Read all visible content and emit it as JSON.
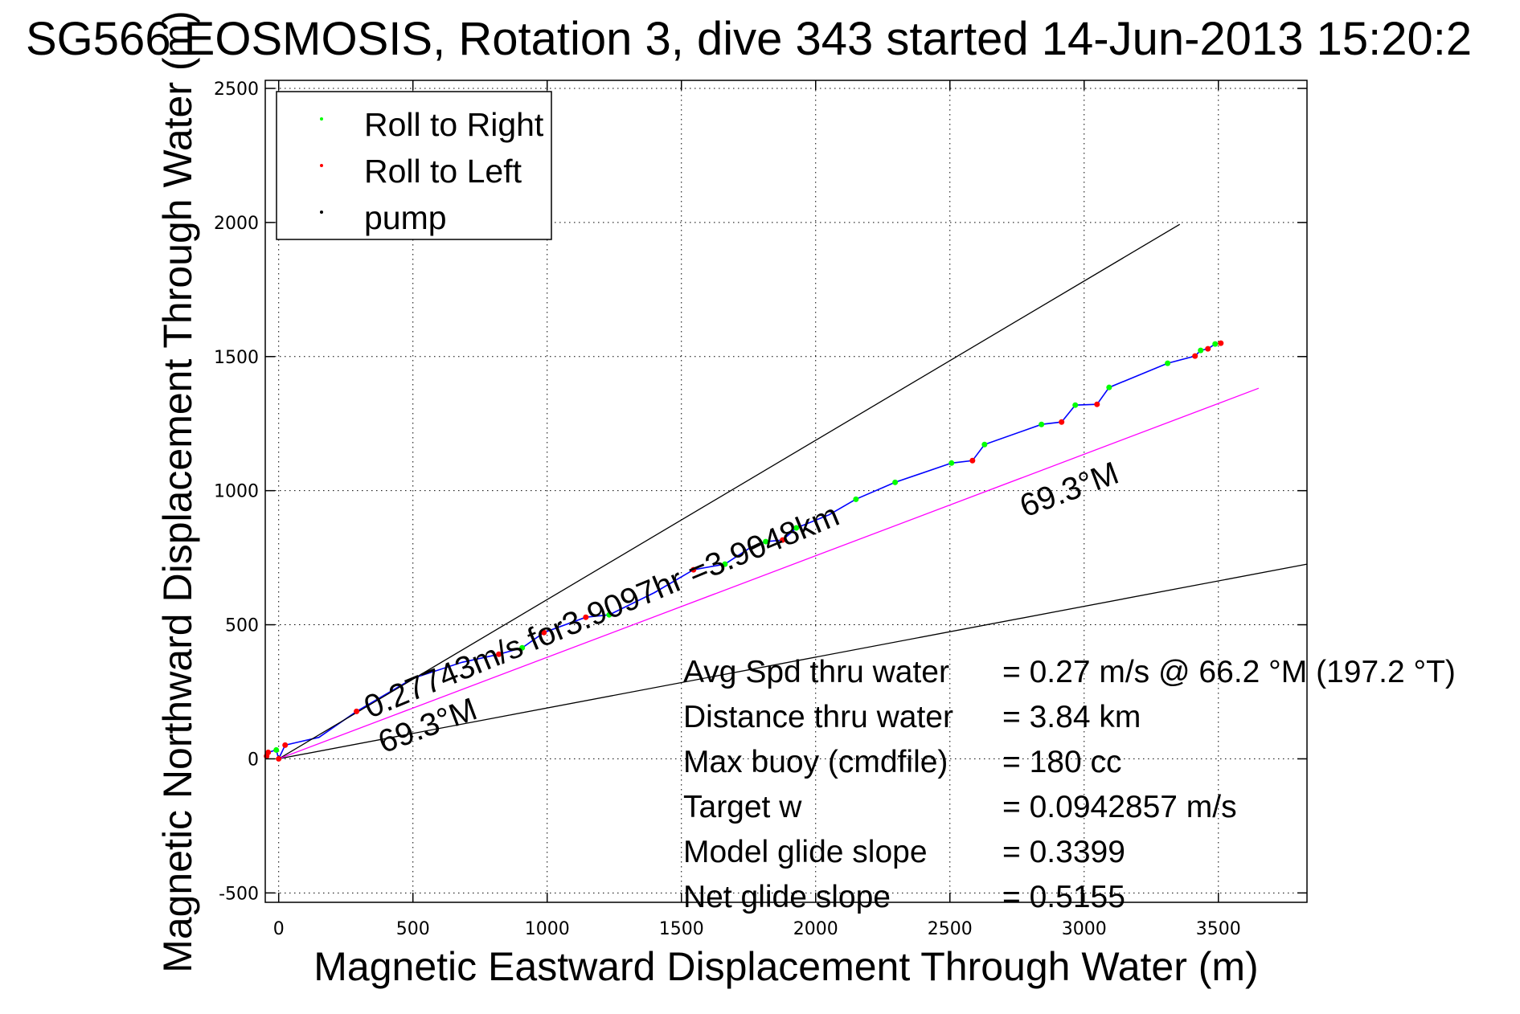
{
  "chart_data": {
    "type": "line",
    "title": "SG566 EOSMOSIS, Rotation 3, dive 343 started 14-Jun-2013 15:20:2",
    "xlabel": "Magnetic Eastward Displacement Through Water (m)",
    "ylabel": "Magnetic Northward Displacement Through Water (m)",
    "xlim": [
      -50,
      3830
    ],
    "ylim": [
      -535,
      2530
    ],
    "xticks": [
      0,
      500,
      1000,
      1500,
      2000,
      2500,
      3000,
      3500
    ],
    "yticks": [
      -500,
      0,
      500,
      1000,
      1500,
      2000,
      2500
    ],
    "xtick_labels": [
      "0",
      "500",
      "1000",
      "1500",
      "2000",
      "2500",
      "3000",
      "3500"
    ],
    "ytick_labels": [
      "-500",
      "0",
      "500",
      "1000",
      "1500",
      "2000",
      "2500"
    ],
    "grid": true,
    "legend": {
      "placement": "top-left",
      "entries": [
        {
          "label": "Roll to Right",
          "color": "#00ff00"
        },
        {
          "label": "Roll to Left",
          "color": "#ff0000"
        },
        {
          "label": "pump",
          "color": "#000000"
        }
      ]
    },
    "series": [
      {
        "name": "track",
        "color": "#0000ff",
        "x": [
          -39,
          -9,
          0,
          24,
          150,
          290,
          500,
          683,
          820,
          907,
          988,
          1144,
          1231,
          1400,
          1545,
          1662,
          1760,
          1814,
          1877,
          1928,
          2050,
          2150,
          2296,
          2506,
          2584,
          2629,
          2841,
          2916,
          2967,
          3048,
          3093,
          3311,
          3413,
          3434,
          3461,
          3488,
          3509
        ],
        "y": [
          24,
          33,
          0,
          51,
          80,
          177,
          300,
          360,
          390,
          414,
          471,
          528,
          537,
          620,
          705,
          726,
          790,
          810,
          816,
          861,
          910,
          968,
          1031,
          1103,
          1112,
          1172,
          1247,
          1256,
          1319,
          1322,
          1385,
          1475,
          1502,
          1523,
          1529,
          1547,
          1550
        ]
      },
      {
        "name": "Roll to Right",
        "color": "#00ff00",
        "x": [
          -9,
          907,
          1231,
          1662,
          1814,
          1928,
          2150,
          2296,
          2506,
          2629,
          2841,
          2967,
          3093,
          3311,
          3434,
          3488
        ],
        "y": [
          33,
          414,
          537,
          726,
          810,
          861,
          968,
          1031,
          1103,
          1172,
          1247,
          1319,
          1385,
          1475,
          1523,
          1547
        ]
      },
      {
        "name": "Roll to Left",
        "color": "#ff0000",
        "x": [
          -39,
          -45,
          0,
          24,
          290,
          820,
          988,
          1144,
          1545,
          1877,
          2584,
          2916,
          3048,
          3413,
          3461,
          3509
        ],
        "y": [
          24,
          10,
          0,
          51,
          177,
          390,
          471,
          528,
          705,
          816,
          1112,
          1256,
          1322,
          1502,
          1529,
          1550
        ]
      },
      {
        "name": "pump",
        "color": "#000000",
        "x": [
          1760,
          1790
        ],
        "y": [
          785,
          800
        ]
      },
      {
        "name": "upper heading bound",
        "color": "#000000",
        "x": [
          0,
          3356
        ],
        "y": [
          0,
          1993
        ]
      },
      {
        "name": "lower heading bound",
        "color": "#000000",
        "x": [
          0,
          3830
        ],
        "y": [
          0,
          726
        ]
      },
      {
        "name": "69.3 M course",
        "color": "#ff00ff",
        "x": [
          0,
          3650
        ],
        "y": [
          0,
          1382
        ]
      }
    ],
    "annotations": [
      {
        "text": "0.27743m/s for3.9097hr =3.9048km",
        "x": 340,
        "y": 150
      },
      {
        "text": "69.3°M",
        "x": 390,
        "y": 20
      },
      {
        "text": "69.3°M",
        "x": 2780,
        "y": 900
      }
    ],
    "stats": [
      {
        "label": "Avg Spd thru water",
        "value": "=  0.27 m/s @  66.2 °M (197.2 °T)"
      },
      {
        "label": "Distance thru water",
        "value": "=  3.84 km"
      },
      {
        "label": "Max buoy (cmdfile)",
        "value": "= 180 cc"
      },
      {
        "label": "Target w",
        "value": "= 0.0942857 m/s"
      },
      {
        "label": "Model glide slope",
        "value": "= 0.3399"
      },
      {
        "label": "Net glide slope",
        "value": "= 0.5155"
      }
    ]
  }
}
